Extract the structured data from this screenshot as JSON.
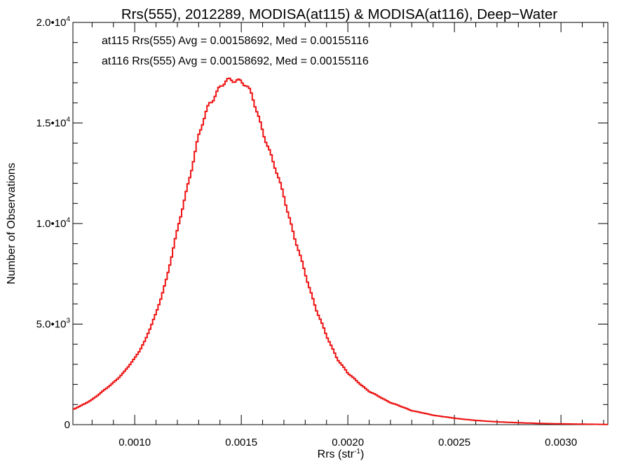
{
  "chart_data": {
    "type": "line",
    "step": true,
    "title": "Rrs(555), 2012289, MODISA(at115) & MODISA(at116), Deep−Water",
    "xlabel_base": "Rrs (str",
    "xlabel_sup": "-1",
    "xlabel_end": ")",
    "ylabel": "Number of Observations",
    "xlim": [
      0.00071,
      0.00322
    ],
    "ylim": [
      0,
      20000
    ],
    "xticks": [
      {
        "value": 0.001,
        "label": "0.0010"
      },
      {
        "value": 0.0015,
        "label": "0.0015"
      },
      {
        "value": 0.002,
        "label": "0.0020"
      },
      {
        "value": 0.0025,
        "label": "0.0025"
      },
      {
        "value": 0.003,
        "label": "0.0030"
      }
    ],
    "yticks": [
      {
        "value": 0,
        "mantissa": "0",
        "exp": ""
      },
      {
        "value": 5000,
        "mantissa": "5.0•1",
        "exp": "3"
      },
      {
        "value": 10000,
        "mantissa": "1.0•1",
        "exp": "4"
      },
      {
        "value": 15000,
        "mantissa": "1.5•1",
        "exp": "4"
      },
      {
        "value": 20000,
        "mantissa": "2.0•1",
        "exp": "4"
      }
    ],
    "annotations": [
      {
        "text": "at115 Rrs(555) Avg = 0.00158692, Med = 0.00155116",
        "color": "#000000"
      },
      {
        "text": "at116 Rrs(555) Avg = 0.00158692, Med = 0.00155116",
        "color": "#ee1111"
      }
    ],
    "series": [
      {
        "color": "#ee1111",
        "x": [
          0.00071,
          0.00075,
          0.0008,
          0.00085,
          0.0009,
          0.00095,
          0.001,
          0.00105,
          0.0011,
          0.00115,
          0.0012,
          0.00125,
          0.0013,
          0.00135,
          0.0014,
          0.00145,
          0.00148,
          0.0015,
          0.00152,
          0.00155,
          0.0016,
          0.00165,
          0.0017,
          0.00175,
          0.0018,
          0.00185,
          0.0019,
          0.00195,
          0.002,
          0.0021,
          0.0022,
          0.0023,
          0.0024,
          0.0025,
          0.0026,
          0.0027,
          0.0028,
          0.0029,
          0.003,
          0.0031,
          0.00322
        ],
        "y": [
          750,
          950,
          1250,
          1650,
          2100,
          2600,
          3300,
          4200,
          5500,
          7300,
          9600,
          12000,
          14300,
          16000,
          16800,
          17100,
          17200,
          17150,
          16900,
          16300,
          14700,
          13000,
          11400,
          9300,
          7500,
          5800,
          4400,
          3300,
          2550,
          1650,
          1100,
          700,
          470,
          320,
          210,
          140,
          95,
          60,
          40,
          25,
          10
        ]
      }
    ]
  }
}
